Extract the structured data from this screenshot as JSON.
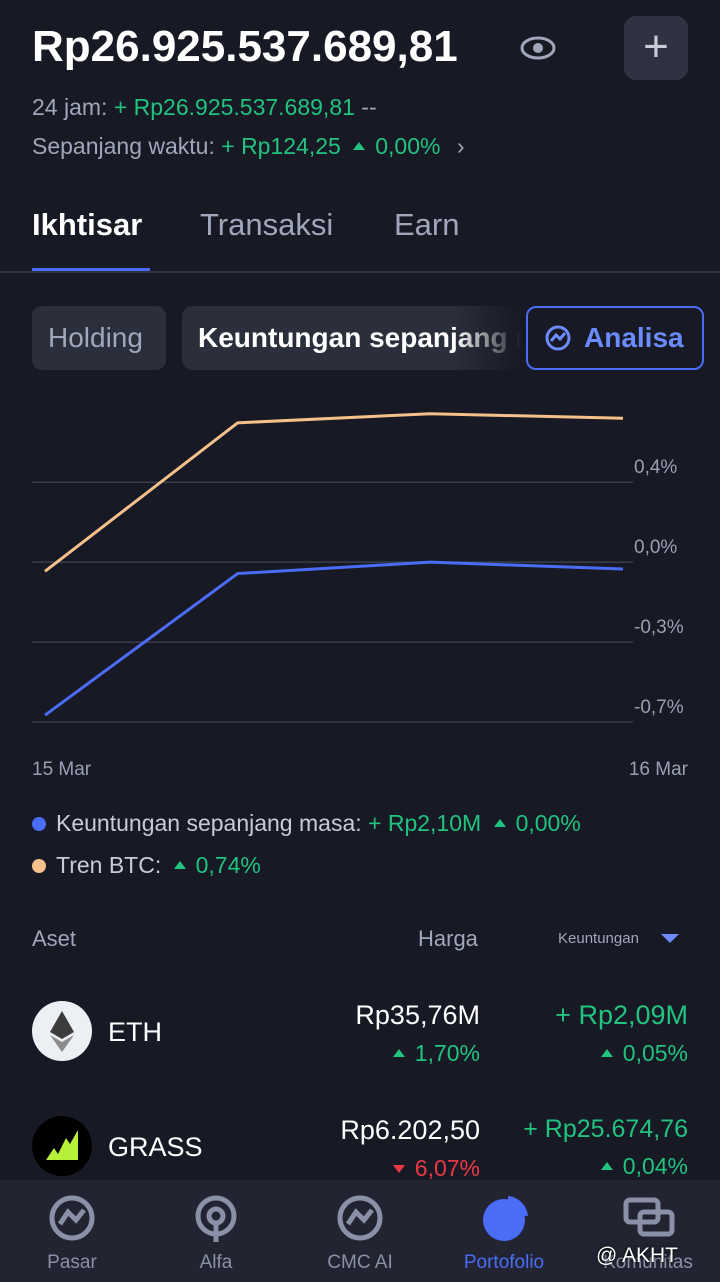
{
  "header": {
    "balance": "Rp26.925.537.689,81",
    "h24_label": "24 jam:",
    "h24_value": "+ Rp26.925.537.689,81",
    "h24_pct": "--",
    "alltime_label": "Sepanjang waktu:",
    "alltime_value": "+ Rp124,25",
    "alltime_pct": "0,00%"
  },
  "tabs": [
    "Ikhtisar",
    "Transaksi",
    "Earn"
  ],
  "chips": [
    "Holding",
    "Keuntungan sepanjang masa",
    "Analisa"
  ],
  "chart_data": {
    "type": "line",
    "categories": [
      "15 Mar",
      null,
      null,
      "16 Mar"
    ],
    "ylim": [
      -0.7,
      0.71
    ],
    "yticks": [
      {
        "value": 0.35,
        "label": "0,4%"
      },
      {
        "value": 0,
        "label": "0,0%"
      },
      {
        "value": -0.35,
        "label": "-0,3%"
      },
      {
        "value": -0.7,
        "label": "-0,7%"
      }
    ],
    "grid": true,
    "series": [
      {
        "name": "Keuntungan sepanjang masa:",
        "color": "#4a6cf7",
        "values": [
          -0.67,
          -0.05,
          0.0,
          -0.03
        ]
      },
      {
        "name": "Tren BTC:",
        "color": "#f5c08a",
        "values": [
          -0.04,
          0.61,
          0.65,
          0.63
        ]
      }
    ]
  },
  "legend_stats": [
    {
      "value": "+ Rp2,10M",
      "change": "0,00%"
    },
    {
      "change": "0,74%"
    }
  ],
  "assets": {
    "columns": [
      "Aset",
      "Harga",
      "Keuntungan"
    ],
    "rows": [
      {
        "symbol": "ETH",
        "price": "Rp35,76M",
        "change": "1,70%",
        "profit": "+ Rp2,09M",
        "profit_pct": "0,05%"
      },
      {
        "symbol": "GRASS",
        "price": "Rp6.202,50",
        "change": "6,07%",
        "profit": "+ Rp25.674,76",
        "profit_pct": "0,04%"
      }
    ]
  },
  "nav": [
    "Pasar",
    "Alfa",
    "CMC AI",
    "Portofolio",
    "Komunitas"
  ],
  "watermark": "@ AKHT"
}
